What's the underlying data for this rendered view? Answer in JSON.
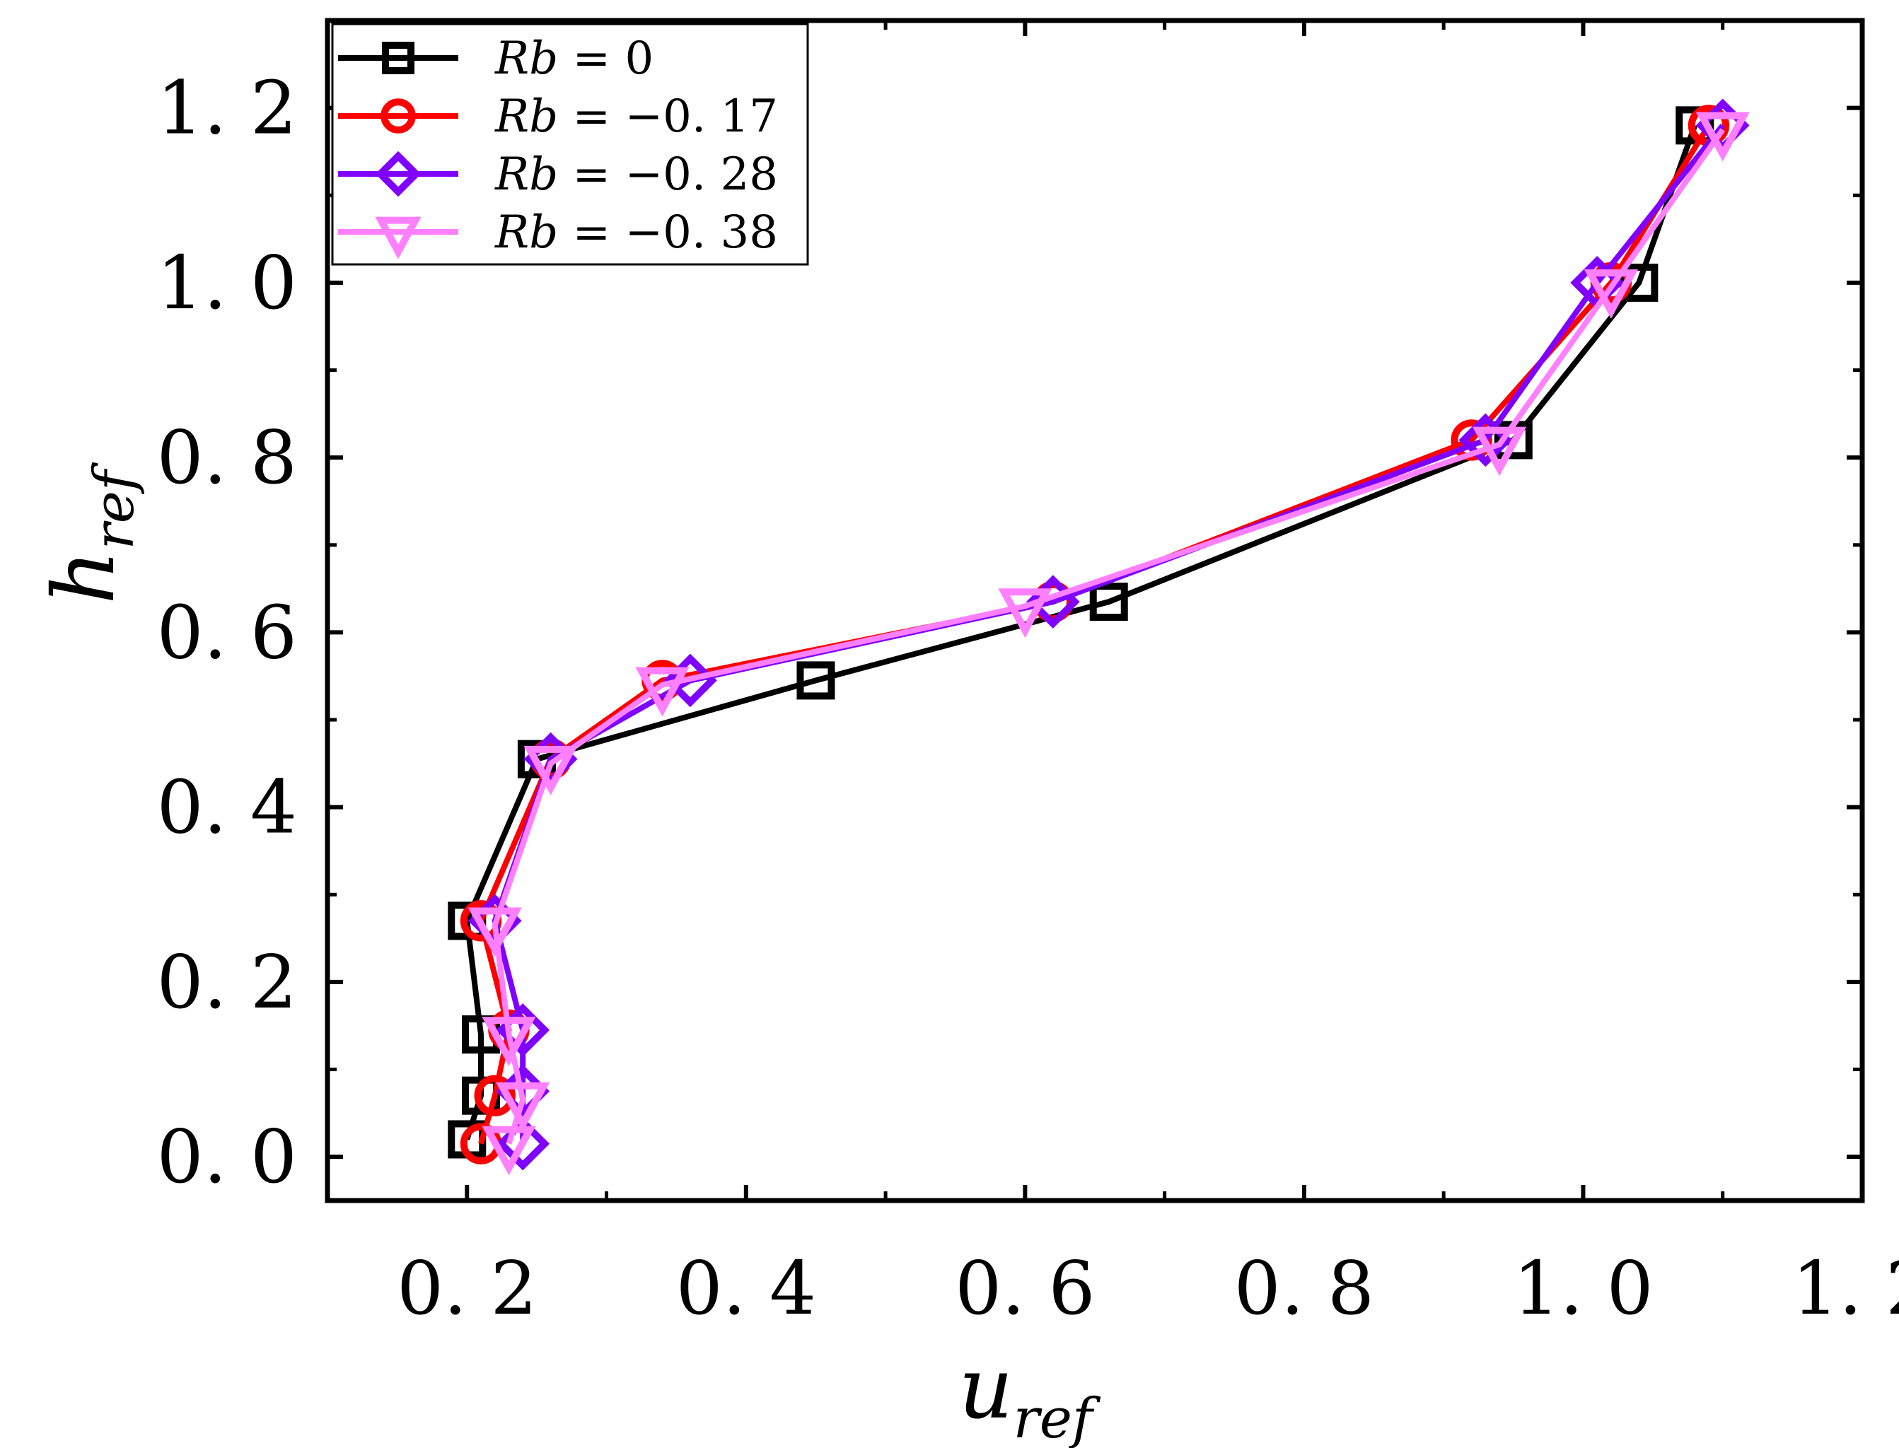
{
  "chart_data": {
    "type": "line",
    "title": "",
    "xlabel": {
      "base": "u",
      "sub": "ref"
    },
    "ylabel": {
      "base": "h",
      "sub": "ref"
    },
    "xlim": [
      0.1,
      1.2
    ],
    "ylim": [
      -0.05,
      1.3
    ],
    "xticks": [
      0.2,
      0.4,
      0.6,
      0.8,
      1.0,
      1.2
    ],
    "yticks": [
      0.0,
      0.2,
      0.4,
      0.6,
      0.8,
      1.0,
      1.2
    ],
    "xtick_labels": [
      "0. 2",
      "0. 4",
      "0. 6",
      "0. 8",
      "1. 0",
      "1. 2"
    ],
    "ytick_labels": [
      "0. 0",
      "0. 2",
      "0. 4",
      "0. 6",
      "0. 8",
      "1. 0",
      "1. 2"
    ],
    "legend_position": "top-left",
    "series": [
      {
        "name": "Rb = 0",
        "legend": {
          "var": "Rb",
          "eq": " =  ",
          "val": "0"
        },
        "color": "#000000",
        "marker": "square",
        "points": [
          [
            0.2,
            0.02
          ],
          [
            0.21,
            0.07
          ],
          [
            0.21,
            0.14
          ],
          [
            0.2,
            0.27
          ],
          [
            0.25,
            0.455
          ],
          [
            0.45,
            0.545
          ],
          [
            0.66,
            0.635
          ],
          [
            0.95,
            0.82
          ],
          [
            1.04,
            1.0
          ],
          [
            1.08,
            1.18
          ]
        ]
      },
      {
        "name": "Rb = -0.17",
        "legend": {
          "var": "Rb",
          "eq": " =  ",
          "val": "−0. 17"
        },
        "color": "#ff0000",
        "marker": "circle",
        "points": [
          [
            0.21,
            0.015
          ],
          [
            0.22,
            0.07
          ],
          [
            0.23,
            0.145
          ],
          [
            0.21,
            0.27
          ],
          [
            0.26,
            0.455
          ],
          [
            0.34,
            0.545
          ],
          [
            0.62,
            0.635
          ],
          [
            0.92,
            0.82
          ],
          [
            1.02,
            1.0
          ],
          [
            1.09,
            1.18
          ]
        ]
      },
      {
        "name": "Rb = -0.28",
        "legend": {
          "var": "Rb",
          "eq": " =  ",
          "val": "−0. 28"
        },
        "color": "#7f00ff",
        "marker": "diamond",
        "points": [
          [
            0.24,
            0.015
          ],
          [
            0.24,
            0.075
          ],
          [
            0.24,
            0.145
          ],
          [
            0.22,
            0.27
          ],
          [
            0.26,
            0.455
          ],
          [
            0.36,
            0.545
          ],
          [
            0.62,
            0.635
          ],
          [
            0.93,
            0.82
          ],
          [
            1.01,
            1.0
          ],
          [
            1.1,
            1.18
          ]
        ]
      },
      {
        "name": "Rb = -0.38",
        "legend": {
          "var": "Rb",
          "eq": " =  ",
          "val": "−0. 38"
        },
        "color": "#ff80ff",
        "marker": "triangle-down",
        "points": [
          [
            0.23,
            0.015
          ],
          [
            0.24,
            0.065
          ],
          [
            0.23,
            0.14
          ],
          [
            0.22,
            0.265
          ],
          [
            0.26,
            0.45
          ],
          [
            0.34,
            0.54
          ],
          [
            0.6,
            0.63
          ],
          [
            0.94,
            0.815
          ],
          [
            1.02,
            0.995
          ],
          [
            1.1,
            1.175
          ]
        ]
      }
    ]
  }
}
